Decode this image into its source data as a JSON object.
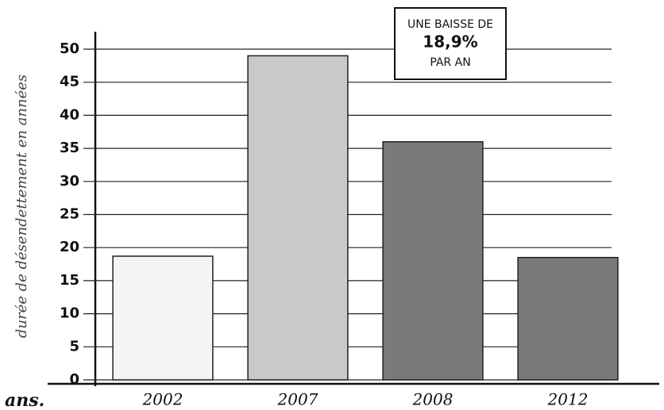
{
  "chart_data": {
    "type": "bar",
    "y_label": "durée de désendettement en années",
    "unit_label": "ans.",
    "annotation": [
      "UNE BAISSE DE",
      "18,9%",
      "PAR AN"
    ],
    "categories": [
      "2002",
      "2007",
      "2008",
      "2012"
    ],
    "values": [
      18.7,
      49,
      36,
      18.5
    ],
    "colors": [
      "#f4f4f4",
      "#c9c9c9",
      "#7a7a7a",
      "#7a7a7a"
    ],
    "ylim": [
      0,
      50
    ],
    "yticks": [
      0,
      5,
      10,
      15,
      20,
      25,
      30,
      35,
      40,
      45,
      50
    ],
    "grid": true
  }
}
